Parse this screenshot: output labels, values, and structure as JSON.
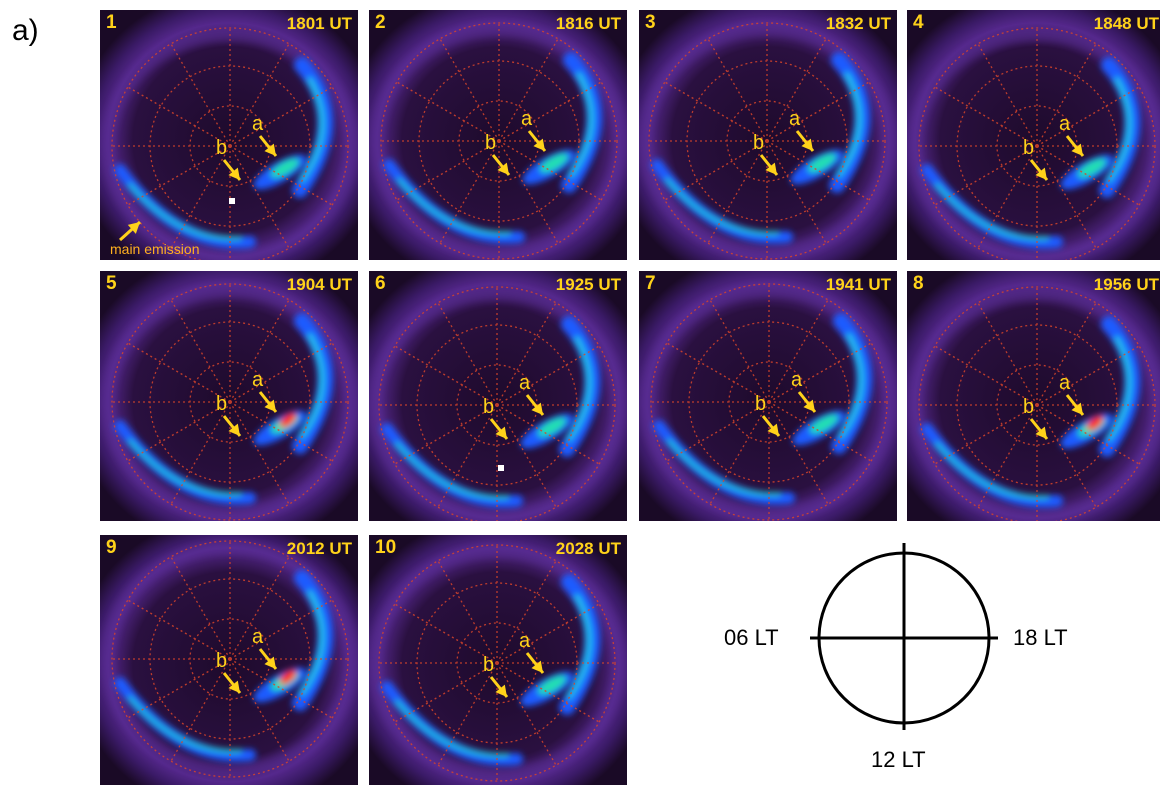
{
  "figure_label": "a)",
  "annotations": {
    "a": "a",
    "b": "b",
    "main_emission": "main emission"
  },
  "panels": [
    {
      "num": "1",
      "time": "1801 UT"
    },
    {
      "num": "2",
      "time": "1816 UT"
    },
    {
      "num": "3",
      "time": "1832 UT"
    },
    {
      "num": "4",
      "time": "1848 UT"
    },
    {
      "num": "5",
      "time": "1904 UT"
    },
    {
      "num": "6",
      "time": "1925 UT"
    },
    {
      "num": "7",
      "time": "1941 UT"
    },
    {
      "num": "8",
      "time": "1956 UT"
    },
    {
      "num": "9",
      "time": "2012 UT"
    },
    {
      "num": "10",
      "time": "2028 UT"
    }
  ],
  "legend": {
    "left": "06 LT",
    "right": "18 LT",
    "bottom": "12 LT"
  },
  "colors": {
    "label": "#ffd21a",
    "grid": "#d8452a",
    "background": "#1a0a26"
  }
}
